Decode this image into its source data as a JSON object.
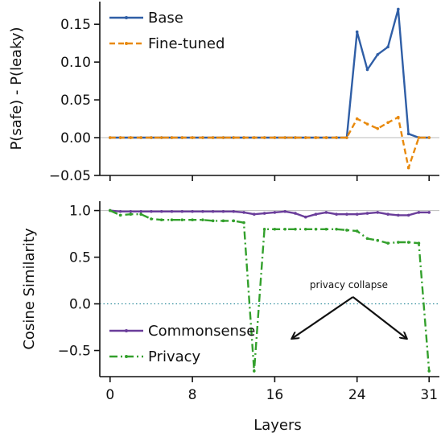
{
  "chart_data": [
    {
      "type": "line",
      "ylabel": "P(safe) - P(leaky)",
      "xlim": [
        -1,
        32
      ],
      "ylim": [
        -0.05,
        0.18
      ],
      "yticks": [
        -0.05,
        0.0,
        0.05,
        0.1,
        0.15
      ],
      "ytick_labels": [
        "−0.05",
        "0.00",
        "0.05",
        "0.10",
        "0.15"
      ],
      "legend_position": "top-left",
      "reference_line": {
        "y": 0,
        "color": "#bbbbbb",
        "style": "solid"
      },
      "x": [
        0,
        1,
        2,
        3,
        4,
        5,
        6,
        7,
        8,
        9,
        10,
        11,
        12,
        13,
        14,
        15,
        16,
        17,
        18,
        19,
        20,
        21,
        22,
        23,
        24,
        25,
        26,
        27,
        28,
        29,
        30,
        31
      ],
      "series": [
        {
          "name": "Base",
          "color": "#2f5ea6",
          "style": "solid",
          "marker": true,
          "values": [
            0,
            0,
            0,
            0,
            0,
            0,
            0,
            0,
            0,
            0,
            0,
            0,
            0,
            0,
            0,
            0,
            0,
            0,
            0,
            0,
            0,
            0,
            0,
            0,
            0.14,
            0.09,
            0.11,
            0.12,
            0.17,
            0.005,
            0,
            0
          ]
        },
        {
          "name": "Fine-tuned",
          "color": "#e8890c",
          "style": "dashed",
          "marker": true,
          "values": [
            0,
            0,
            0,
            0,
            0,
            0,
            0,
            0,
            0,
            0,
            0,
            0,
            0,
            0,
            0,
            0,
            0,
            0,
            0,
            0,
            0,
            0,
            0,
            0,
            0.025,
            0.018,
            0.012,
            0.02,
            0.027,
            -0.04,
            0,
            0
          ]
        }
      ]
    },
    {
      "type": "line",
      "ylabel": "Cosine Similarity",
      "xlabel": "Layers",
      "xlim": [
        -1,
        32
      ],
      "ylim": [
        -0.78,
        1.1
      ],
      "xticks": [
        0,
        8,
        16,
        24,
        31
      ],
      "xtick_labels": [
        "0",
        "8",
        "16",
        "24",
        "31"
      ],
      "yticks": [
        -0.5,
        0.0,
        0.5,
        1.0
      ],
      "ytick_labels": [
        "−0.5",
        "0.0",
        "0.5",
        "1.0"
      ],
      "legend_position": "bottom-left",
      "reference_lines": [
        {
          "y": 1,
          "color": "#bbbbbb",
          "style": "solid"
        },
        {
          "y": 0,
          "color": "#2a8a9a",
          "style": "dotted"
        }
      ],
      "x": [
        0,
        1,
        2,
        3,
        4,
        5,
        6,
        7,
        8,
        9,
        10,
        11,
        12,
        13,
        14,
        15,
        16,
        17,
        18,
        19,
        20,
        21,
        22,
        23,
        24,
        25,
        26,
        27,
        28,
        29,
        30,
        31
      ],
      "series": [
        {
          "name": "Commonsense",
          "color": "#6a3d9a",
          "style": "solid",
          "marker": true,
          "values": [
            1.0,
            0.99,
            0.99,
            0.99,
            0.99,
            0.99,
            0.99,
            0.99,
            0.99,
            0.99,
            0.99,
            0.99,
            0.99,
            0.98,
            0.96,
            0.97,
            0.98,
            0.99,
            0.97,
            0.93,
            0.96,
            0.98,
            0.96,
            0.96,
            0.96,
            0.97,
            0.98,
            0.96,
            0.95,
            0.95,
            0.98,
            0.98
          ]
        },
        {
          "name": "Privacy",
          "color": "#33a02c",
          "style": "dashdot",
          "marker": true,
          "values": [
            1.0,
            0.95,
            0.96,
            0.96,
            0.91,
            0.9,
            0.9,
            0.9,
            0.9,
            0.9,
            0.89,
            0.89,
            0.89,
            0.87,
            -0.72,
            0.8,
            0.8,
            0.8,
            0.8,
            0.8,
            0.8,
            0.8,
            0.8,
            0.79,
            0.78,
            0.7,
            0.68,
            0.65,
            0.66,
            0.66,
            0.65,
            -0.72
          ]
        }
      ],
      "annotation": {
        "text": "privacy collapse",
        "arrow_from_x": 17.7,
        "arrow_from_y": 0.05,
        "targets": [
          {
            "x": 17.7,
            "y": -0.37
          },
          {
            "x": 28.8,
            "y": -0.37
          }
        ]
      }
    }
  ]
}
